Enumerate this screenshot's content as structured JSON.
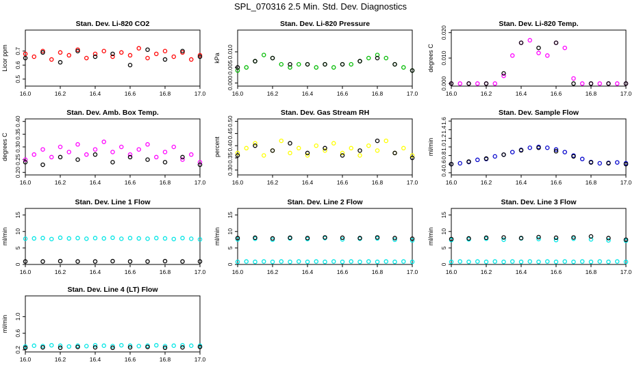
{
  "figure": {
    "title": "SPL_070316  2.5 Min. Std. Dev. Diagnostics"
  },
  "chart_data": [
    {
      "type": "scatter",
      "title": "Stan. Dev. Li-820 CO2",
      "xlabel": "",
      "ylabel": "Licor ppm",
      "xlim": [
        16.0,
        17.0
      ],
      "ylim": [
        0.45,
        0.85
      ],
      "xticks": [
        "16.0",
        "16.2",
        "16.4",
        "16.6",
        "16.8",
        "17.0"
      ],
      "yticks": [
        "0.5",
        "0.6",
        "0.7"
      ],
      "series": [
        {
          "color": "#ff0000",
          "x": [
            16.0,
            16.05,
            16.1,
            16.15,
            16.2,
            16.25,
            16.3,
            16.35,
            16.4,
            16.45,
            16.5,
            16.55,
            16.6,
            16.65,
            16.7,
            16.75,
            16.8,
            16.85,
            16.9,
            16.95,
            17.0
          ],
          "y": [
            0.68,
            0.66,
            0.7,
            0.64,
            0.69,
            0.67,
            0.71,
            0.65,
            0.68,
            0.7,
            0.66,
            0.69,
            0.67,
            0.72,
            0.65,
            0.68,
            0.7,
            0.66,
            0.69,
            0.64,
            0.67
          ]
        },
        {
          "color": "#000000",
          "x": [
            16.0,
            16.1,
            16.2,
            16.3,
            16.4,
            16.5,
            16.6,
            16.7,
            16.8,
            16.9,
            17.0
          ],
          "y": [
            0.65,
            0.69,
            0.62,
            0.7,
            0.66,
            0.68,
            0.6,
            0.71,
            0.64,
            0.7,
            0.66
          ]
        }
      ]
    },
    {
      "type": "scatter",
      "title": "Stan. Dev. Li-820 Pressure",
      "xlabel": "",
      "ylabel": "kPa",
      "xlim": [
        16.0,
        17.0
      ],
      "ylim": [
        -0.001,
        0.017
      ],
      "xticks": [
        "16.0",
        "16.2",
        "16.4",
        "16.6",
        "16.8",
        "17.0"
      ],
      "yticks": [
        "0.000",
        "0.005",
        "0.010"
      ],
      "series": [
        {
          "color": "#00bb00",
          "x": [
            16.0,
            16.05,
            16.1,
            16.15,
            16.2,
            16.25,
            16.3,
            16.35,
            16.4,
            16.45,
            16.5,
            16.55,
            16.6,
            16.65,
            16.7,
            16.75,
            16.8,
            16.85,
            16.9,
            16.95,
            17.0
          ],
          "y": [
            0.004,
            0.005,
            0.007,
            0.009,
            0.008,
            0.006,
            0.005,
            0.006,
            0.006,
            0.005,
            0.006,
            0.005,
            0.006,
            0.006,
            0.007,
            0.008,
            0.009,
            0.008,
            0.006,
            0.005,
            0.004
          ]
        },
        {
          "color": "#000000",
          "x": [
            16.0,
            16.1,
            16.2,
            16.3,
            16.4,
            16.5,
            16.6,
            16.7,
            16.8,
            16.9,
            17.0
          ],
          "y": [
            0.005,
            0.007,
            0.008,
            0.006,
            0.006,
            0.006,
            0.006,
            0.007,
            0.008,
            0.006,
            0.004
          ]
        }
      ]
    },
    {
      "type": "scatter",
      "title": "Stan. Dev. Li-820 Temp.",
      "xlabel": "",
      "ylabel": "degrees C",
      "xlim": [
        16.0,
        17.0
      ],
      "ylim": [
        -0.001,
        0.021
      ],
      "xticks": [
        "16.0",
        "16.2",
        "16.4",
        "16.6",
        "16.8",
        "17.0"
      ],
      "yticks": [
        "0.000",
        "0.010",
        "0.020"
      ],
      "series": [
        {
          "color": "#ff00ff",
          "x": [
            16.0,
            16.05,
            16.1,
            16.15,
            16.2,
            16.25,
            16.3,
            16.35,
            16.4,
            16.45,
            16.5,
            16.55,
            16.6,
            16.65,
            16.7,
            16.75,
            16.8,
            16.85,
            16.9,
            16.95,
            17.0
          ],
          "y": [
            0.0,
            0.0,
            0.0,
            0.0,
            0.0,
            0.0,
            0.003,
            0.011,
            0.016,
            0.017,
            0.012,
            0.011,
            0.016,
            0.014,
            0.002,
            0.0,
            0.0,
            0.0,
            0.0,
            0.0,
            0.0
          ]
        },
        {
          "color": "#000000",
          "x": [
            16.0,
            16.1,
            16.2,
            16.3,
            16.4,
            16.5,
            16.6,
            16.7,
            16.8,
            16.9,
            17.0
          ],
          "y": [
            0.0,
            0.0,
            0.0,
            0.004,
            0.016,
            0.014,
            0.016,
            0.0,
            0.0,
            0.0,
            0.0
          ]
        }
      ]
    },
    {
      "type": "scatter",
      "title": "Stan. Dev. Amb. Box Temp.",
      "xlabel": "",
      "ylabel": "degrees C",
      "xlim": [
        16.0,
        17.0
      ],
      "ylim": [
        0.19,
        0.41
      ],
      "xticks": [
        "16.0",
        "16.2",
        "16.4",
        "16.6",
        "16.8",
        "17.0"
      ],
      "yticks": [
        "0.20",
        "0.25",
        "0.30",
        "0.35",
        "0.40"
      ],
      "series": [
        {
          "color": "#ff00ff",
          "x": [
            16.0,
            16.05,
            16.1,
            16.15,
            16.2,
            16.25,
            16.3,
            16.35,
            16.4,
            16.45,
            16.5,
            16.55,
            16.6,
            16.65,
            16.7,
            16.75,
            16.8,
            16.85,
            16.9,
            16.95,
            17.0
          ],
          "y": [
            0.25,
            0.27,
            0.29,
            0.26,
            0.3,
            0.28,
            0.31,
            0.27,
            0.29,
            0.32,
            0.28,
            0.3,
            0.27,
            0.29,
            0.31,
            0.26,
            0.28,
            0.3,
            0.25,
            0.27,
            0.24
          ]
        },
        {
          "color": "#000000",
          "x": [
            16.0,
            16.1,
            16.2,
            16.3,
            16.4,
            16.5,
            16.6,
            16.7,
            16.8,
            16.9,
            17.0
          ],
          "y": [
            0.24,
            0.23,
            0.26,
            0.25,
            0.27,
            0.24,
            0.26,
            0.25,
            0.24,
            0.26,
            0.23
          ]
        }
      ]
    },
    {
      "type": "scatter",
      "title": "Stan. Dev. Gas Stream RH",
      "xlabel": "",
      "ylabel": "percent",
      "xlim": [
        16.0,
        17.0
      ],
      "ylim": [
        0.28,
        0.51
      ],
      "xticks": [
        "16.0",
        "16.2",
        "16.4",
        "16.6",
        "16.8",
        "17.0"
      ],
      "yticks": [
        "0.30",
        "0.35",
        "0.40",
        "0.45",
        "0.50"
      ],
      "series": [
        {
          "color": "#ffff00",
          "x": [
            16.0,
            16.05,
            16.1,
            16.15,
            16.2,
            16.25,
            16.3,
            16.35,
            16.4,
            16.45,
            16.5,
            16.55,
            16.6,
            16.65,
            16.7,
            16.75,
            16.8,
            16.85,
            16.9,
            16.95,
            17.0
          ],
          "y": [
            0.37,
            0.39,
            0.41,
            0.36,
            0.38,
            0.42,
            0.37,
            0.39,
            0.36,
            0.4,
            0.38,
            0.41,
            0.37,
            0.39,
            0.36,
            0.4,
            0.38,
            0.42,
            0.37,
            0.39,
            0.36
          ]
        },
        {
          "color": "#000000",
          "x": [
            16.0,
            16.1,
            16.2,
            16.3,
            16.4,
            16.5,
            16.6,
            16.7,
            16.8,
            16.9,
            17.0
          ],
          "y": [
            0.36,
            0.4,
            0.38,
            0.41,
            0.37,
            0.39,
            0.36,
            0.38,
            0.42,
            0.37,
            0.35
          ]
        }
      ]
    },
    {
      "type": "scatter",
      "title": "Stan. Dev. Sample Flow",
      "xlabel": "",
      "ylabel": "ml/min",
      "xlim": [
        16.0,
        17.0
      ],
      "ylim": [
        0.35,
        1.65
      ],
      "xticks": [
        "16.0",
        "16.2",
        "16.4",
        "16.6",
        "16.8",
        "17.0"
      ],
      "yticks": [
        "0.4",
        "0.6",
        "0.8",
        "1.0",
        "1.2",
        "1.4",
        "1.6"
      ],
      "series": [
        {
          "color": "#0000cc",
          "x": [
            16.0,
            16.05,
            16.1,
            16.15,
            16.2,
            16.25,
            16.3,
            16.35,
            16.4,
            16.45,
            16.5,
            16.55,
            16.6,
            16.65,
            16.7,
            16.75,
            16.8,
            16.85,
            16.9,
            16.95,
            17.0
          ],
          "y": [
            0.6,
            0.62,
            0.65,
            0.7,
            0.72,
            0.78,
            0.82,
            0.88,
            0.93,
            0.98,
            1.0,
            0.98,
            0.94,
            0.88,
            0.8,
            0.72,
            0.65,
            0.62,
            0.63,
            0.64,
            0.62
          ]
        },
        {
          "color": "#000000",
          "x": [
            16.0,
            16.1,
            16.2,
            16.3,
            16.4,
            16.5,
            16.6,
            16.7,
            16.8,
            16.9,
            17.0
          ],
          "y": [
            0.6,
            0.66,
            0.73,
            0.82,
            0.92,
            0.98,
            0.9,
            0.78,
            0.64,
            0.62,
            0.6
          ]
        }
      ]
    },
    {
      "type": "scatter",
      "title": "Stan. Dev. Line 1 Flow",
      "xlabel": "",
      "ylabel": "ml/min",
      "xlim": [
        16.0,
        17.0
      ],
      "ylim": [
        0,
        17
      ],
      "xticks": [
        "16.0",
        "16.2",
        "16.4",
        "16.6",
        "16.8",
        "17.0"
      ],
      "yticks": [
        "0",
        "5",
        "10",
        "15"
      ],
      "series": [
        {
          "color": "#00e5e5",
          "x": [
            16.0,
            16.05,
            16.1,
            16.15,
            16.2,
            16.25,
            16.3,
            16.35,
            16.4,
            16.45,
            16.5,
            16.55,
            16.6,
            16.65,
            16.7,
            16.75,
            16.8,
            16.85,
            16.9,
            16.95,
            17.0
          ],
          "y": [
            7.8,
            7.9,
            8.0,
            7.7,
            8.1,
            7.9,
            8.0,
            7.8,
            8.0,
            7.9,
            8.1,
            7.8,
            8.0,
            7.9,
            7.8,
            8.0,
            7.9,
            7.7,
            8.0,
            7.8,
            7.6
          ]
        },
        {
          "color": "#000000",
          "x": [
            16.0,
            16.1,
            16.2,
            16.3,
            16.4,
            16.5,
            16.6,
            16.7,
            16.8,
            16.9,
            17.0
          ],
          "y": [
            0.9,
            0.9,
            1.0,
            0.9,
            0.9,
            1.0,
            0.9,
            0.9,
            1.0,
            0.9,
            0.9
          ]
        }
      ]
    },
    {
      "type": "scatter",
      "title": "Stan. Dev. Line 2 Flow",
      "xlabel": "",
      "ylabel": "ml/min",
      "xlim": [
        16.0,
        17.0
      ],
      "ylim": [
        0,
        17
      ],
      "xticks": [
        "16.0",
        "16.2",
        "16.4",
        "16.6",
        "16.8",
        "17.0"
      ],
      "yticks": [
        "0",
        "5",
        "10",
        "15"
      ],
      "series": [
        {
          "color": "#00e5e5",
          "x": [
            16.0,
            16.05,
            16.1,
            16.15,
            16.2,
            16.25,
            16.3,
            16.35,
            16.4,
            16.45,
            16.5,
            16.55,
            16.6,
            16.65,
            16.7,
            16.75,
            16.8,
            16.85,
            16.9,
            16.95,
            17.0
          ],
          "y": [
            0.8,
            0.9,
            0.8,
            0.9,
            0.8,
            0.9,
            0.8,
            0.9,
            0.8,
            0.9,
            0.8,
            0.9,
            0.8,
            0.9,
            0.8,
            0.9,
            0.8,
            0.9,
            0.8,
            0.9,
            0.8
          ]
        },
        {
          "color": "#00e5e5",
          "x": [
            16.0,
            16.1,
            16.2,
            16.3,
            16.4,
            16.5,
            16.6,
            16.7,
            16.8,
            16.9,
            17.0
          ],
          "y": [
            7.6,
            7.8,
            7.5,
            7.9,
            7.7,
            8.0,
            7.6,
            7.8,
            7.9,
            7.5,
            7.3
          ]
        },
        {
          "color": "#000000",
          "x": [
            16.0,
            16.1,
            16.2,
            16.3,
            16.4,
            16.5,
            16.6,
            16.7,
            16.8,
            16.9,
            17.0
          ],
          "y": [
            8.0,
            8.1,
            7.9,
            8.1,
            8.0,
            8.2,
            8.1,
            8.0,
            8.2,
            8.0,
            7.8
          ]
        }
      ]
    },
    {
      "type": "scatter",
      "title": "Stan. Dev. Line 3 Flow",
      "xlabel": "",
      "ylabel": "ml/min",
      "xlim": [
        16.0,
        17.0
      ],
      "ylim": [
        0,
        17
      ],
      "xticks": [
        "16.0",
        "16.2",
        "16.4",
        "16.6",
        "16.8",
        "17.0"
      ],
      "yticks": [
        "0",
        "5",
        "10",
        "15"
      ],
      "series": [
        {
          "color": "#00e5e5",
          "x": [
            16.0,
            16.05,
            16.1,
            16.15,
            16.2,
            16.25,
            16.3,
            16.35,
            16.4,
            16.45,
            16.5,
            16.55,
            16.6,
            16.65,
            16.7,
            16.75,
            16.8,
            16.85,
            16.9,
            16.95,
            17.0
          ],
          "y": [
            0.8,
            0.9,
            0.8,
            0.9,
            0.8,
            0.9,
            0.8,
            0.9,
            0.8,
            0.9,
            0.8,
            0.9,
            0.8,
            0.9,
            0.8,
            0.9,
            0.8,
            0.9,
            0.8,
            0.9,
            0.8
          ]
        },
        {
          "color": "#00e5e5",
          "x": [
            16.0,
            16.1,
            16.2,
            16.3,
            16.4,
            16.5,
            16.6,
            16.7,
            16.8,
            16.9,
            17.0
          ],
          "y": [
            7.4,
            7.6,
            7.8,
            7.5,
            7.9,
            7.7,
            7.4,
            7.8,
            7.6,
            7.3,
            7.2
          ]
        },
        {
          "color": "#000000",
          "x": [
            16.0,
            16.1,
            16.2,
            16.3,
            16.4,
            16.5,
            16.6,
            16.7,
            16.8,
            16.9,
            17.0
          ],
          "y": [
            7.7,
            7.9,
            8.1,
            8.2,
            8.0,
            8.3,
            8.1,
            8.2,
            8.5,
            8.0,
            7.5
          ]
        }
      ]
    },
    {
      "type": "scatter",
      "title": "Stan. Dev. Line 4 (LT) Flow",
      "xlabel": "",
      "ylabel": "ml/min",
      "xlim": [
        16.0,
        17.0
      ],
      "ylim": [
        0.15,
        1.5
      ],
      "xticks": [
        "16.0",
        "16.2",
        "16.4",
        "16.6",
        "16.8",
        "17.0"
      ],
      "yticks": [
        "0.2",
        "0.6",
        "1.0"
      ],
      "series": [
        {
          "color": "#00e5e5",
          "x": [
            16.0,
            16.05,
            16.1,
            16.15,
            16.2,
            16.25,
            16.3,
            16.35,
            16.4,
            16.45,
            16.5,
            16.55,
            16.6,
            16.65,
            16.7,
            16.75,
            16.8,
            16.85,
            16.9,
            16.95,
            17.0
          ],
          "y": [
            0.28,
            0.3,
            0.29,
            0.31,
            0.3,
            0.28,
            0.3,
            0.29,
            0.31,
            0.3,
            0.29,
            0.31,
            0.3,
            0.29,
            0.3,
            0.31,
            0.29,
            0.3,
            0.31,
            0.3,
            0.3
          ]
        },
        {
          "color": "#000000",
          "x": [
            16.0,
            16.1,
            16.2,
            16.3,
            16.4,
            16.5,
            16.6,
            16.7,
            16.8,
            16.9,
            17.0
          ],
          "y": [
            0.25,
            0.26,
            0.25,
            0.27,
            0.26,
            0.25,
            0.26,
            0.27,
            0.25,
            0.26,
            0.27
          ]
        }
      ]
    }
  ]
}
